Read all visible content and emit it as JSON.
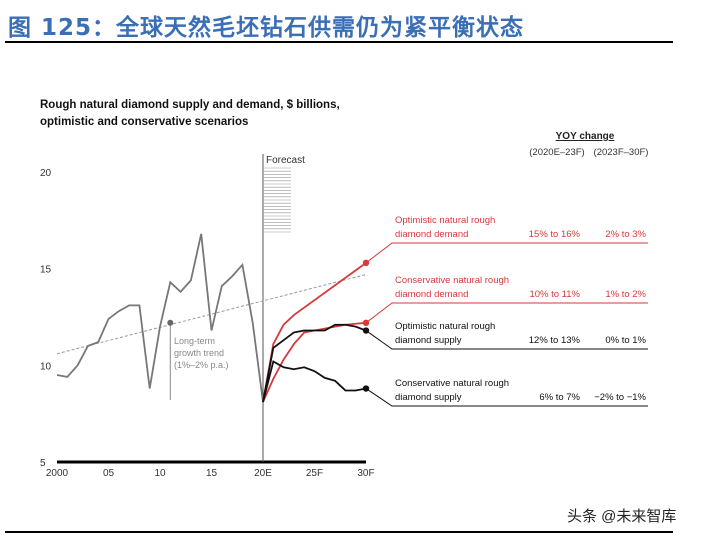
{
  "figure_title": "图 125：全球天然毛坯钻石供需仍为紧平衡状态",
  "watermark": "头条 @未来智库",
  "chart_data": {
    "type": "line",
    "title": "Rough natural diamond supply and demand, $ billions, optimistic and conservative scenarios",
    "ylim": [
      5,
      20
    ],
    "yticks": [
      5,
      10,
      15,
      20
    ],
    "xlim": [
      2000,
      2030
    ],
    "xticks": [
      {
        "v": 2000,
        "label": "2000"
      },
      {
        "v": 2005,
        "label": "05"
      },
      {
        "v": 2010,
        "label": "10"
      },
      {
        "v": 2015,
        "label": "15"
      },
      {
        "v": 2020,
        "label": "20E"
      },
      {
        "v": 2025,
        "label": "25F"
      },
      {
        "v": 2030,
        "label": "30F"
      }
    ],
    "forecast_label": "Forecast",
    "forecast_start": 2020,
    "history": {
      "x": [
        2000,
        2001,
        2002,
        2003,
        2004,
        2005,
        2006,
        2007,
        2008,
        2009,
        2010,
        2011,
        2012,
        2013,
        2014,
        2015,
        2016,
        2017,
        2018,
        2019,
        2020
      ],
      "y": [
        9.5,
        9.4,
        10.0,
        11.0,
        11.2,
        12.4,
        12.8,
        13.1,
        13.1,
        8.8,
        12.0,
        14.3,
        13.8,
        14.4,
        16.8,
        11.8,
        14.1,
        14.6,
        15.2,
        12.2,
        8.1
      ],
      "color": "#777777"
    },
    "trend": {
      "label": "Long-term growth trend (1%–2% p.a.)",
      "label_lines": [
        "Long-term",
        "growth trend",
        "(1%–2% p.a.)"
      ],
      "x": [
        2000,
        2030
      ],
      "y": [
        10.6,
        14.7
      ],
      "marker_x": 2011,
      "marker_y": 12.2
    },
    "yoy_header": "YOY change",
    "yoy_periods": [
      "(2020E–23F)",
      "(2023F–30F)"
    ],
    "series": [
      {
        "name": "Optimistic natural rough diamond demand",
        "name_lines": [
          "Optimistic natural rough",
          "diamond demand"
        ],
        "color": "#d63a3a",
        "yoy": [
          "15% to 16%",
          "2% to 3%"
        ],
        "x": [
          2020,
          2021,
          2022,
          2023,
          2030
        ],
        "y": [
          8.1,
          11.1,
          12.1,
          12.6,
          15.3
        ]
      },
      {
        "name": "Conservative natural rough diamond demand",
        "name_lines": [
          "Conservative natural rough",
          "diamond demand"
        ],
        "color": "#d63a3a",
        "yoy": [
          "10% to 11%",
          "1% to 2%"
        ],
        "x": [
          2020,
          2021,
          2022,
          2023,
          2024,
          2025,
          2026,
          2027,
          2028,
          2029,
          2030
        ],
        "y": [
          8.1,
          9.3,
          10.3,
          11.1,
          11.7,
          11.8,
          11.9,
          12.0,
          12.1,
          12.15,
          12.2
        ]
      },
      {
        "name": "Optimistic natural rough diamond supply",
        "name_lines": [
          "Optimistic natural rough",
          "diamond supply"
        ],
        "color": "#111111",
        "yoy": [
          "12% to 13%",
          "0% to 1%"
        ],
        "x": [
          2020,
          2021,
          2022,
          2023,
          2024,
          2025,
          2026,
          2027,
          2028,
          2029,
          2030
        ],
        "y": [
          8.1,
          10.9,
          11.3,
          11.7,
          11.8,
          11.8,
          11.8,
          12.1,
          12.1,
          12.0,
          11.8
        ]
      },
      {
        "name": "Conservative natural rough diamond supply",
        "name_lines": [
          "Conservative natural rough",
          "diamond supply"
        ],
        "color": "#111111",
        "yoy": [
          "6% to 7%",
          "−2% to −1%"
        ],
        "x": [
          2020,
          2021,
          2022,
          2023,
          2024,
          2025,
          2026,
          2027,
          2028,
          2029,
          2030
        ],
        "y": [
          8.1,
          10.2,
          9.9,
          9.8,
          9.9,
          9.7,
          9.35,
          9.2,
          8.7,
          8.7,
          8.8
        ]
      }
    ]
  }
}
